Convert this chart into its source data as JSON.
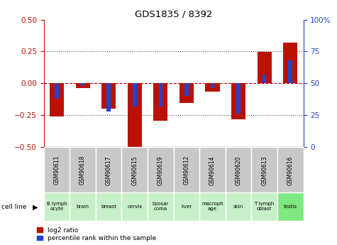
{
  "title": "GDS1835 / 8392",
  "samples": [
    "GSM90611",
    "GSM90618",
    "GSM90617",
    "GSM90615",
    "GSM90619",
    "GSM90612",
    "GSM90614",
    "GSM90620",
    "GSM90613",
    "GSM90616"
  ],
  "cell_lines": [
    "B lymph\nocyte",
    "brain",
    "breast",
    "cervix",
    "liposar\ncoma",
    "liver",
    "macroph\nage",
    "skin",
    "T lymph\noblast",
    "testis"
  ],
  "cell_bg": [
    "#c8f0c8",
    "#c8f0c8",
    "#c8f0c8",
    "#c8f0c8",
    "#c8f0c8",
    "#c8f0c8",
    "#c8f0c8",
    "#c8f0c8",
    "#c8f0c8",
    "#80e880"
  ],
  "log2_ratio": [
    -0.26,
    -0.035,
    -0.2,
    -0.5,
    -0.295,
    -0.155,
    -0.065,
    -0.28,
    0.245,
    0.32
  ],
  "percentile_rank": [
    38,
    48,
    28,
    32,
    32,
    40,
    46,
    26,
    57,
    68
  ],
  "left_ylim": [
    -0.5,
    0.5
  ],
  "right_ylim": [
    0,
    100
  ],
  "left_yticks": [
    -0.5,
    -0.25,
    0,
    0.25,
    0.5
  ],
  "right_yticks": [
    0,
    25,
    50,
    75,
    100
  ],
  "bar_color_red": "#bb1100",
  "bar_color_blue": "#2244cc",
  "zero_line_color": "#cc0000",
  "dotted_line_color": "#555555",
  "bg_plot": "#ffffff",
  "bg_sample_label": "#c8c8c8",
  "bg_cell_line_light": "#c8f0c8",
  "bg_cell_line_dark": "#80e880"
}
